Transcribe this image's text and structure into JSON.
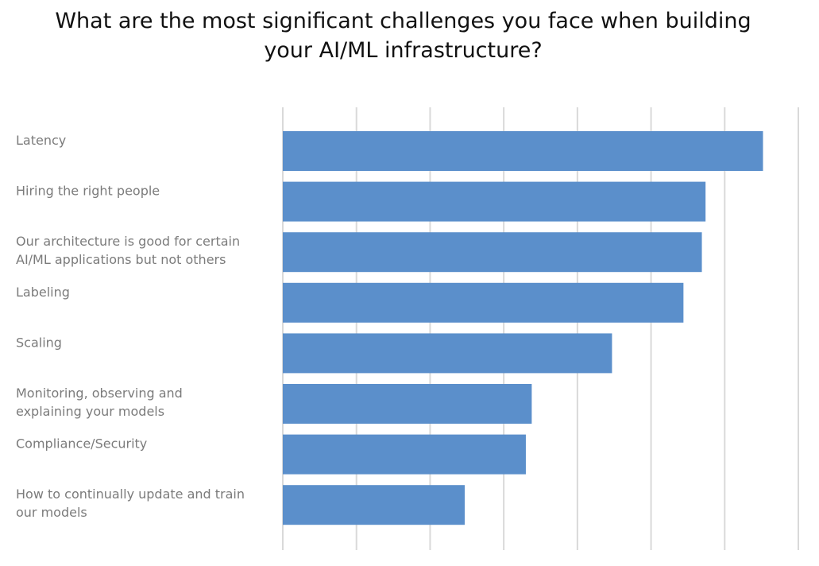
{
  "chart_data": {
    "type": "bar",
    "orientation": "horizontal",
    "title": "What are the most significant challenges you face when building your AI/ML infrastructure?",
    "xlabel": "",
    "ylabel": "",
    "categories": [
      "Latency",
      "Hiring the right people",
      "Our architecture is good for certain AI/ML applications but not others",
      "Labeling",
      "Scaling",
      "Monitoring, observing and explaining your models",
      "Compliance/Security",
      "How to continually update and train our models"
    ],
    "category_lines": [
      [
        "Latency"
      ],
      [
        "Hiring the right people"
      ],
      [
        "Our architecture is good for certain",
        "AI/ML applications but not others"
      ],
      [
        "Labeling"
      ],
      [
        "Scaling"
      ],
      [
        "Monitoring, observing and",
        "explaining your models"
      ],
      [
        "Compliance/Security"
      ],
      [
        "How to continually update and train",
        "our models"
      ]
    ],
    "values": [
      0.652,
      0.574,
      0.569,
      0.544,
      0.447,
      0.338,
      0.33,
      0.247
    ],
    "xlim": [
      0,
      0.7
    ],
    "grid_step": 0.1,
    "grid": true,
    "tick_labels_visible": false,
    "legend": "none",
    "bar_color": "#5b8fcb",
    "grid_color": "#d9d9d9",
    "label_color": "#7b7b7b"
  }
}
